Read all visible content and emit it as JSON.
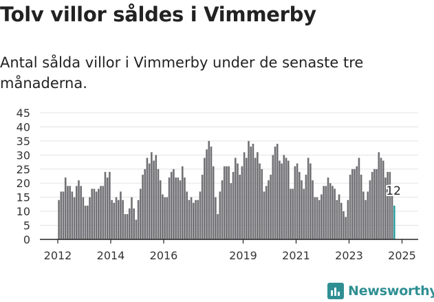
{
  "title": "Tolv villor såldes i Vimmerby",
  "subtitle": "Antal sålda villor i Vimmerby under de senaste tre månaderna.",
  "brand": {
    "name": "Newsworthy",
    "icon": "bar-chart-icon",
    "color": "#2f8f93"
  },
  "colors": {
    "bar": "#707074",
    "highlight": "#2a9d99",
    "grid": "#e3e3e3",
    "axis": "#222222"
  },
  "chart_data": {
    "type": "bar",
    "x_start": "2012-01",
    "x_end": "2025-01",
    "ylim": [
      0,
      45
    ],
    "yticks": [
      0,
      5,
      10,
      15,
      20,
      25,
      30,
      35,
      40,
      45
    ],
    "xticks": [
      "2012",
      "2014",
      "2016",
      "2019",
      "2021",
      "2023",
      "2025"
    ],
    "highlight_label": "12",
    "grid": true,
    "values": [
      14,
      17,
      17,
      22,
      19,
      19,
      17,
      15,
      19,
      21,
      19,
      15,
      12,
      12,
      15,
      18,
      18,
      17,
      18,
      19,
      19,
      24,
      22,
      24,
      14,
      13,
      15,
      14,
      17,
      14,
      9,
      9,
      11,
      15,
      11,
      7,
      14,
      18,
      23,
      25,
      29,
      27,
      31,
      28,
      30,
      25,
      21,
      16,
      15,
      15,
      22,
      24,
      25,
      22,
      22,
      21,
      26,
      22,
      17,
      14,
      15,
      13,
      14,
      14,
      17,
      23,
      29,
      32,
      35,
      33,
      26,
      15,
      9,
      17,
      21,
      26,
      26,
      26,
      20,
      24,
      29,
      27,
      23,
      26,
      31,
      29,
      35,
      33,
      34,
      29,
      31,
      27,
      25,
      17,
      19,
      21,
      23,
      30,
      33,
      34,
      28,
      27,
      30,
      29,
      28,
      18,
      18,
      26,
      27,
      24,
      21,
      18,
      23,
      29,
      27,
      21,
      15,
      15,
      14,
      16,
      19,
      19,
      22,
      20,
      19,
      18,
      14,
      16,
      13,
      10,
      8,
      14,
      23,
      25,
      25,
      26,
      29,
      23,
      17,
      14,
      17,
      21,
      24,
      25,
      25,
      31,
      29,
      28,
      22,
      24,
      24,
      16,
      12
    ]
  }
}
